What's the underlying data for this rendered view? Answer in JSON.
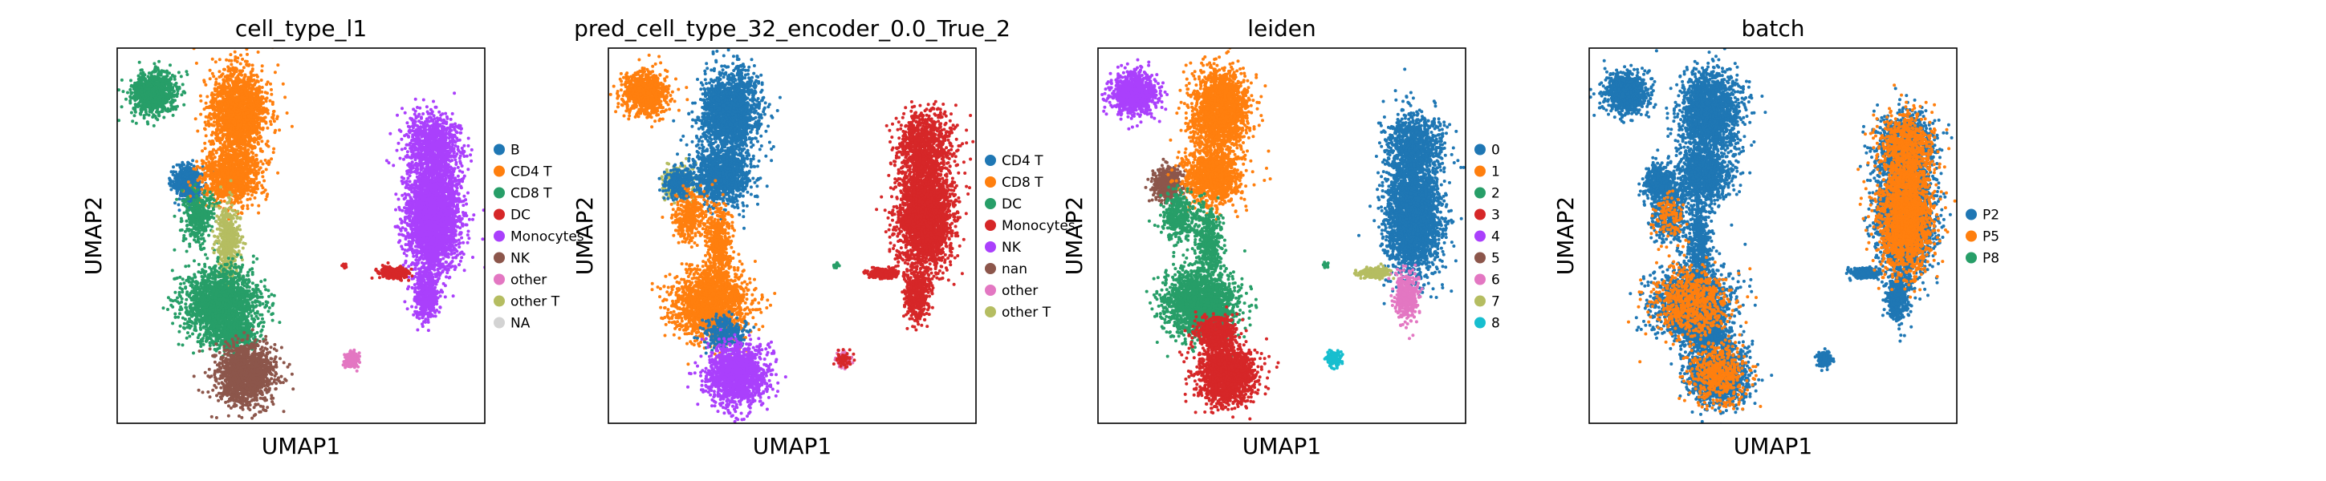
{
  "panels": [
    {
      "title": "cell_type_l1",
      "xlabel": "UMAP1",
      "ylabel": "UMAP2",
      "legend": [
        {
          "label": "B",
          "color": "#1f77b4"
        },
        {
          "label": "CD4 T",
          "color": "#ff7f0e"
        },
        {
          "label": "CD8 T",
          "color": "#279e68"
        },
        {
          "label": "DC",
          "color": "#d62728"
        },
        {
          "label": "Monocytes",
          "color": "#aa40fc"
        },
        {
          "label": "NK",
          "color": "#8c564b"
        },
        {
          "label": "other",
          "color": "#e377c2"
        },
        {
          "label": "other T",
          "color": "#b5bd61"
        },
        {
          "label": "NA",
          "color": "#d3d3d3"
        }
      ]
    },
    {
      "title": "pred_cell_type_32_encoder_0.0_True_2",
      "xlabel": "UMAP1",
      "ylabel": "UMAP2",
      "legend": [
        {
          "label": "CD4 T",
          "color": "#1f77b4"
        },
        {
          "label": "CD8 T",
          "color": "#ff7f0e"
        },
        {
          "label": "DC",
          "color": "#279e68"
        },
        {
          "label": "Monocytes",
          "color": "#d62728"
        },
        {
          "label": "NK",
          "color": "#aa40fc"
        },
        {
          "label": "nan",
          "color": "#8c564b"
        },
        {
          "label": "other",
          "color": "#e377c2"
        },
        {
          "label": "other T",
          "color": "#b5bd61"
        }
      ]
    },
    {
      "title": "leiden",
      "xlabel": "UMAP1",
      "ylabel": "UMAP2",
      "legend": [
        {
          "label": "0",
          "color": "#1f77b4"
        },
        {
          "label": "1",
          "color": "#ff7f0e"
        },
        {
          "label": "2",
          "color": "#279e68"
        },
        {
          "label": "3",
          "color": "#d62728"
        },
        {
          "label": "4",
          "color": "#aa40fc"
        },
        {
          "label": "5",
          "color": "#8c564b"
        },
        {
          "label": "6",
          "color": "#e377c2"
        },
        {
          "label": "7",
          "color": "#b5bd61"
        },
        {
          "label": "8",
          "color": "#17becf"
        }
      ]
    },
    {
      "title": "batch",
      "xlabel": "UMAP1",
      "ylabel": "UMAP2",
      "legend": [
        {
          "label": "P2",
          "color": "#1f77b4"
        },
        {
          "label": "P5",
          "color": "#ff7f0e"
        },
        {
          "label": "P8",
          "color": "#279e68"
        }
      ]
    }
  ],
  "chart_data": [
    {
      "type": "scatter",
      "title": "cell_type_l1",
      "xlabel": "UMAP1",
      "ylabel": "UMAP2",
      "xticks": [],
      "yticks": [],
      "legend_position": "right",
      "series": [
        {
          "name": "B",
          "color": "#1f77b4",
          "cluster": [
            0.19,
            0.36
          ]
        },
        {
          "name": "CD4 T",
          "color": "#ff7f0e",
          "cluster": [
            0.32,
            0.22
          ]
        },
        {
          "name": "CD8 T",
          "color": "#279e68",
          "cluster": [
            0.3,
            0.7
          ]
        },
        {
          "name": "DC",
          "color": "#d62728",
          "cluster": [
            0.76,
            0.6
          ]
        },
        {
          "name": "Monocytes",
          "color": "#aa40fc",
          "cluster": [
            0.86,
            0.4
          ]
        },
        {
          "name": "NK",
          "color": "#8c564b",
          "cluster": [
            0.34,
            0.87
          ]
        },
        {
          "name": "other",
          "color": "#e377c2",
          "cluster": [
            0.64,
            0.83
          ]
        },
        {
          "name": "other T",
          "color": "#b5bd61",
          "cluster": [
            0.28,
            0.56
          ]
        },
        {
          "name": "NA",
          "color": "#d3d3d3",
          "cluster": []
        }
      ]
    },
    {
      "type": "scatter",
      "title": "pred_cell_type_32_encoder_0.0_True_2",
      "xlabel": "UMAP1",
      "ylabel": "UMAP2",
      "xticks": [],
      "yticks": [],
      "legend_position": "right",
      "series": [
        {
          "name": "CD4 T",
          "color": "#1f77b4",
          "cluster": [
            0.3,
            0.3
          ]
        },
        {
          "name": "CD8 T",
          "color": "#ff7f0e",
          "cluster": [
            0.24,
            0.68
          ]
        },
        {
          "name": "DC",
          "color": "#279e68",
          "cluster": [
            0.62,
            0.59
          ]
        },
        {
          "name": "Monocytes",
          "color": "#d62728",
          "cluster": [
            0.86,
            0.42
          ]
        },
        {
          "name": "NK",
          "color": "#aa40fc",
          "cluster": [
            0.34,
            0.86
          ]
        },
        {
          "name": "nan",
          "color": "#8c564b",
          "cluster": []
        },
        {
          "name": "other",
          "color": "#e377c2",
          "cluster": [
            0.64,
            0.83
          ]
        },
        {
          "name": "other T",
          "color": "#b5bd61",
          "cluster": [
            0.22,
            0.38
          ]
        }
      ]
    },
    {
      "type": "scatter",
      "title": "leiden",
      "xlabel": "UMAP1",
      "ylabel": "UMAP2",
      "xticks": [],
      "yticks": [],
      "legend_position": "right",
      "series": [
        {
          "name": "0",
          "color": "#1f77b4",
          "cluster": [
            0.86,
            0.4
          ]
        },
        {
          "name": "1",
          "color": "#ff7f0e",
          "cluster": [
            0.32,
            0.22
          ]
        },
        {
          "name": "2",
          "color": "#279e68",
          "cluster": [
            0.3,
            0.66
          ]
        },
        {
          "name": "3",
          "color": "#d62728",
          "cluster": [
            0.36,
            0.84
          ]
        },
        {
          "name": "4",
          "color": "#aa40fc",
          "cluster": [
            0.11,
            0.12
          ]
        },
        {
          "name": "5",
          "color": "#8c564b",
          "cluster": [
            0.2,
            0.36
          ]
        },
        {
          "name": "6",
          "color": "#e377c2",
          "cluster": [
            0.82,
            0.7
          ]
        },
        {
          "name": "7",
          "color": "#b5bd61",
          "cluster": [
            0.74,
            0.6
          ]
        },
        {
          "name": "8",
          "color": "#17becf",
          "cluster": [
            0.64,
            0.83
          ]
        }
      ]
    },
    {
      "type": "scatter",
      "title": "batch",
      "xlabel": "UMAP1",
      "ylabel": "UMAP2",
      "xticks": [],
      "yticks": [],
      "legend_position": "right",
      "series": [
        {
          "name": "P2",
          "color": "#1f77b4",
          "cluster": [
            0.3,
            0.5
          ]
        },
        {
          "name": "P5",
          "color": "#ff7f0e",
          "cluster": [
            0.86,
            0.4
          ]
        },
        {
          "name": "P8",
          "color": "#279e68",
          "cluster": []
        }
      ]
    }
  ]
}
